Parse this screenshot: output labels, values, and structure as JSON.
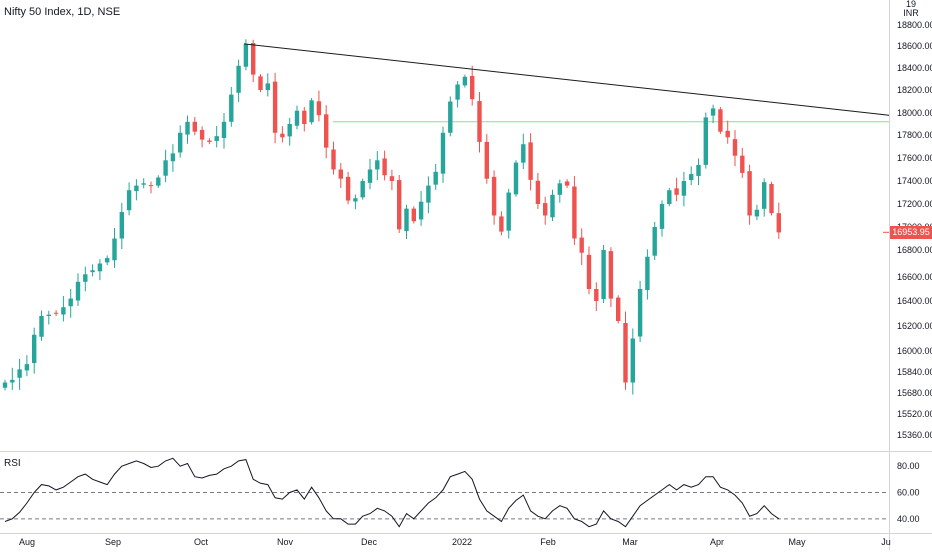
{
  "header": {
    "title": "Nifty 50 Index, 1D, NSE"
  },
  "currency": {
    "top": "19",
    "unit": "INR"
  },
  "rsi": {
    "label": "RSI"
  },
  "chart_data": [
    {
      "type": "candlestick",
      "title": "Nifty 50 Index, 1D, NSE",
      "ylim": [
        15200,
        19000
      ],
      "y_ticks": [
        "18800.00",
        "18600.00",
        "18400.00",
        "18200.00",
        "18000.00",
        "17800.00",
        "17600.00",
        "17400.00",
        "17200.00",
        "17000.00",
        "16800.00",
        "16600.00",
        "16400.00",
        "16200.00",
        "16000.00",
        "15840.00",
        "15680.00",
        "15520.00",
        "15360.00"
      ],
      "x_ticks": [
        "Aug",
        "Sep",
        "Oct",
        "Nov",
        "Dec",
        "2022",
        "Feb",
        "Mar",
        "Apr",
        "May",
        "Ju"
      ],
      "last_price": "16953.95",
      "colors": {
        "up": "#26a69a",
        "down": "#ef5350"
      },
      "closes": [
        15760,
        15780,
        15860,
        15900,
        16130,
        16280,
        16290,
        16300,
        16350,
        16420,
        16560,
        16620,
        16650,
        16700,
        16740,
        16900,
        17130,
        17320,
        17360,
        17380,
        17360,
        17430,
        17580,
        17640,
        17820,
        17920,
        17830,
        17760,
        17740,
        17790,
        17920,
        18160,
        18420,
        18620,
        18340,
        18200,
        18260,
        17820,
        17780,
        17900,
        18020,
        17900,
        18110,
        17980,
        17690,
        17500,
        17420,
        17230,
        17250,
        17400,
        17500,
        17580,
        17450,
        17400,
        16980,
        17160,
        17050,
        17220,
        17360,
        17480,
        17820,
        18100,
        18250,
        18320,
        18120,
        17740,
        17420,
        17100,
        16960,
        17300,
        17560,
        17720,
        17410,
        17200,
        17100,
        17280,
        17380,
        17360,
        16900,
        16780,
        16500,
        16400,
        16800,
        16420,
        16240,
        15760,
        16100,
        16500,
        16750,
        17000,
        17200,
        17320,
        17280,
        17400,
        17460,
        17540,
        17960,
        18040,
        17830,
        17780,
        17620,
        17470,
        17100,
        17150,
        17390,
        17120,
        16953
      ],
      "highlight_line": 17920,
      "trendline": [
        "18620",
        "17980"
      ],
      "rsi_ylim": [
        30,
        90
      ],
      "rsi_ticks": [
        "80.00",
        "60.00",
        "40.00"
      ],
      "rsi_levels": [
        60,
        40
      ],
      "rsi_values": [
        38,
        40,
        45,
        52,
        60,
        66,
        65,
        62,
        64,
        68,
        72,
        74,
        70,
        68,
        66,
        74,
        80,
        82,
        84,
        82,
        79,
        80,
        84,
        86,
        80,
        82,
        72,
        71,
        73,
        74,
        78,
        80,
        84,
        85,
        70,
        67,
        66,
        56,
        55,
        60,
        62,
        55,
        64,
        56,
        46,
        40,
        40,
        36,
        36,
        42,
        44,
        48,
        46,
        42,
        34,
        44,
        40,
        46,
        52,
        56,
        62,
        72,
        74,
        76,
        70,
        55,
        46,
        42,
        38,
        48,
        54,
        58,
        46,
        42,
        40,
        46,
        50,
        48,
        40,
        38,
        34,
        36,
        46,
        40,
        38,
        34,
        42,
        50,
        54,
        58,
        62,
        66,
        62,
        66,
        64,
        66,
        72,
        72,
        64,
        62,
        58,
        52,
        42,
        44,
        50,
        44,
        40
      ]
    }
  ]
}
